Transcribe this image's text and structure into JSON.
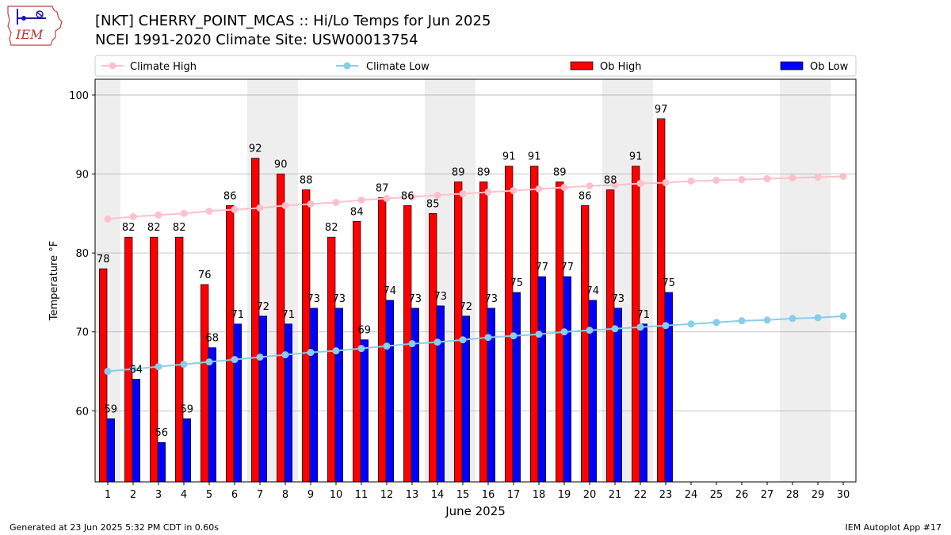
{
  "header": {
    "title_line1": "[NKT] CHERRY_POINT_MCAS :: Hi/Lo Temps for Jun 2025",
    "title_line2": "NCEI 1991-2020 Climate Site: USW00013754"
  },
  "logo": {
    "text": "IEM"
  },
  "footer": {
    "generated": "Generated at 23 Jun 2025 5:32 PM CDT in 0.60s",
    "app": "IEM Autoplot App #17"
  },
  "colors": {
    "climate_high": "#ffc0cb",
    "climate_low": "#87ceeb",
    "ob_high": "#ff0000",
    "ob_low": "#0000ff",
    "weekend_band": "#eeeeee",
    "grid": "#b0b0b0"
  },
  "chart_data": {
    "type": "bar",
    "xlabel": "June 2025",
    "ylabel": "Temperature °F",
    "ylim": [
      51,
      102
    ],
    "yticks": [
      60,
      70,
      80,
      90,
      100
    ],
    "grid": "horizontal",
    "legend_position": "top",
    "days": [
      1,
      2,
      3,
      4,
      5,
      6,
      7,
      8,
      9,
      10,
      11,
      12,
      13,
      14,
      15,
      16,
      17,
      18,
      19,
      20,
      21,
      22,
      23,
      24,
      25,
      26,
      27,
      28,
      29,
      30
    ],
    "weekend_bands": [
      [
        1
      ],
      [
        7,
        8
      ],
      [
        14,
        15
      ],
      [
        21,
        22
      ],
      [
        28,
        29
      ]
    ],
    "series": [
      {
        "name": "Climate High",
        "kind": "line",
        "values": [
          84.3,
          84.6,
          84.8,
          85.0,
          85.3,
          85.5,
          85.7,
          86.0,
          86.2,
          86.4,
          86.7,
          86.9,
          87.1,
          87.3,
          87.5,
          87.7,
          87.9,
          88.1,
          88.3,
          88.5,
          88.6,
          88.8,
          88.9,
          89.1,
          89.2,
          89.3,
          89.4,
          89.5,
          89.6,
          89.7
        ]
      },
      {
        "name": "Climate Low",
        "kind": "line",
        "values": [
          65.0,
          65.3,
          65.6,
          65.9,
          66.2,
          66.5,
          66.8,
          67.1,
          67.4,
          67.6,
          67.9,
          68.2,
          68.5,
          68.7,
          69.0,
          69.3,
          69.5,
          69.7,
          70.0,
          70.2,
          70.4,
          70.6,
          70.8,
          71.0,
          71.2,
          71.4,
          71.5,
          71.7,
          71.8,
          72.0
        ]
      },
      {
        "name": "Ob High",
        "kind": "bar",
        "values": [
          78,
          82,
          82,
          82,
          76,
          86,
          92,
          90,
          88,
          82,
          84,
          87,
          86,
          85,
          89,
          89,
          91,
          91,
          89,
          86,
          88,
          91,
          97
        ]
      },
      {
        "name": "Ob Low",
        "kind": "bar",
        "values": [
          59,
          64,
          56,
          59,
          68,
          71,
          72,
          71,
          73,
          73,
          69,
          74,
          73,
          73.3,
          72,
          73,
          75,
          77,
          77,
          74,
          73,
          71,
          75
        ]
      }
    ],
    "ob_low_labels": [
      "59",
      "64",
      "56",
      "59",
      "68",
      "71",
      "72",
      "71",
      "73",
      "73",
      "69",
      "74",
      "73",
      "73",
      "72",
      "73",
      "75",
      "77",
      "77",
      "74",
      "73",
      "71",
      "75"
    ]
  }
}
